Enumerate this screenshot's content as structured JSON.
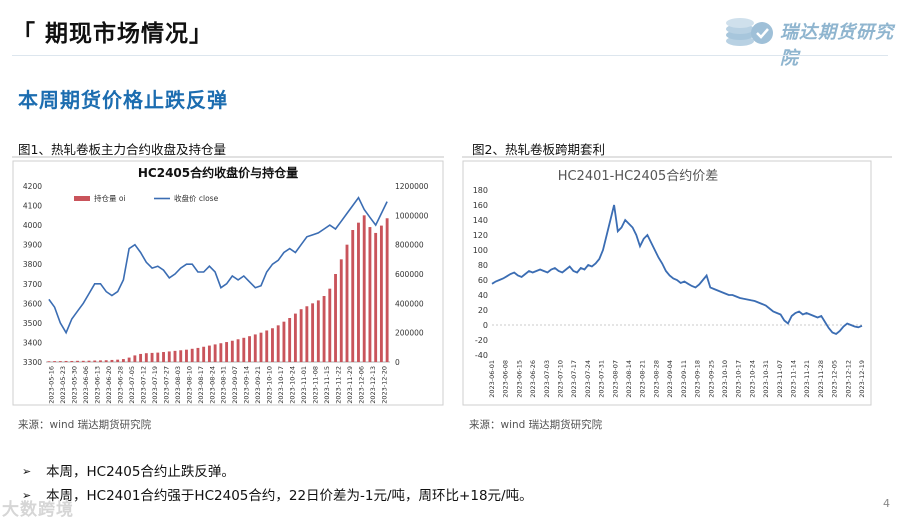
{
  "header": {
    "title": "「 期现市场情况」"
  },
  "logo": {
    "text": "瑞达期货研究院",
    "icon": "coins-stack-icon"
  },
  "section": {
    "title": "本周期货价格止跌反弹"
  },
  "figures": {
    "fig1_caption": "图1、热轧卷板主力合约收盘及持仓量",
    "fig2_caption": "图2、热轧卷板跨期套利"
  },
  "sources": {
    "left": "来源：wind   瑞达期货研究院",
    "right": "来源：wind   瑞达期货研究院"
  },
  "bullets": [
    "本周，HC2405合约止跌反弹。",
    "本周，HC2401合约强于HC2405合约，22日价差为-1元/吨，周环比+18元/吨。"
  ],
  "watermark": "大数跨境",
  "page_number": "4",
  "colors": {
    "accent": "#1c6db0",
    "bar": "#c9545b",
    "line": "#3b6db3",
    "logo": "#8fb5cf"
  },
  "chart_data": [
    {
      "type": "bar+line",
      "title": "HC2405合约收盘价与持仓量",
      "legend": {
        "bar": "持仓量 oi",
        "line": "收盘价 close",
        "placement": "top"
      },
      "y_left_ticks": [
        "3300",
        "3400",
        "3500",
        "3600",
        "3700",
        "3800",
        "3900",
        "4000",
        "4100",
        "4200"
      ],
      "y_right_ticks": [
        "0",
        "200000",
        "400000",
        "600000",
        "800000",
        "1000000",
        "1200000"
      ],
      "ylim_left": [
        3300,
        4200
      ],
      "ylim_right": [
        0,
        1200000
      ],
      "x_tick_labels": [
        "2023-05-16",
        "2023-05-23",
        "2023-05-30",
        "2023-06-06",
        "2023-06-13",
        "2023-06-20",
        "2023-06-28",
        "2023-07-05",
        "2023-07-12",
        "2023-07-19",
        "2023-07-27",
        "2023-08-03",
        "2023-08-10",
        "2023-08-17",
        "2023-08-24",
        "2023-08-31",
        "2023-09-07",
        "2023-09-14",
        "2023-09-21",
        "2023-10-10",
        "2023-10-17",
        "2023-10-24",
        "2023-11-01",
        "2023-11-08",
        "2023-11-15",
        "2023-11-22",
        "2023-11-29",
        "2023-12-06",
        "2023-12-13",
        "2023-12-20"
      ],
      "close": [
        3620,
        3580,
        3500,
        3450,
        3520,
        3560,
        3600,
        3650,
        3700,
        3700,
        3660,
        3640,
        3660,
        3720,
        3880,
        3900,
        3860,
        3810,
        3780,
        3790,
        3770,
        3730,
        3750,
        3780,
        3800,
        3800,
        3760,
        3760,
        3790,
        3760,
        3680,
        3700,
        3740,
        3720,
        3740,
        3710,
        3680,
        3690,
        3760,
        3800,
        3820,
        3860,
        3880,
        3860,
        3900,
        3940,
        3950,
        3960,
        3980,
        4000,
        3980,
        4020,
        4060,
        4100,
        4140,
        4080,
        4040,
        4000,
        4060,
        4120
      ],
      "oi": [
        5000,
        6000,
        6000,
        7000,
        7000,
        8000,
        8000,
        9000,
        10000,
        11000,
        12000,
        14000,
        16000,
        20000,
        30000,
        45000,
        55000,
        60000,
        62000,
        64000,
        68000,
        72000,
        76000,
        80000,
        84000,
        90000,
        96000,
        104000,
        112000,
        120000,
        128000,
        136000,
        145000,
        155000,
        165000,
        176000,
        188000,
        200000,
        215000,
        230000,
        250000,
        275000,
        300000,
        330000,
        360000,
        380000,
        400000,
        420000,
        450000,
        500000,
        600000,
        700000,
        800000,
        900000,
        950000,
        1000000,
        920000,
        880000,
        930000,
        980000
      ]
    },
    {
      "type": "line",
      "title": "HC2401-HC2405合约价差",
      "y_ticks": [
        "-40",
        "-20",
        "0",
        "20",
        "40",
        "60",
        "80",
        "100",
        "120",
        "140",
        "160",
        "180"
      ],
      "ylim": [
        -40,
        180
      ],
      "x_tick_labels": [
        "2023-06-01",
        "2023-06-08",
        "2023-06-15",
        "2023-06-26",
        "2023-07-03",
        "2023-07-10",
        "2023-07-17",
        "2023-07-24",
        "2023-07-31",
        "2023-08-07",
        "2023-08-14",
        "2023-08-21",
        "2023-08-28",
        "2023-09-04",
        "2023-09-11",
        "2023-09-18",
        "2023-09-25",
        "2023-10-10",
        "2023-10-17",
        "2023-10-24",
        "2023-10-31",
        "2023-11-07",
        "2023-11-14",
        "2023-11-21",
        "2023-11-28",
        "2023-12-05",
        "2023-12-12",
        "2023-12-19"
      ],
      "values": [
        55,
        58,
        60,
        62,
        65,
        68,
        70,
        66,
        64,
        68,
        72,
        70,
        72,
        74,
        72,
        70,
        74,
        76,
        72,
        70,
        74,
        78,
        72,
        70,
        76,
        74,
        80,
        78,
        82,
        88,
        100,
        120,
        140,
        160,
        125,
        130,
        140,
        135,
        130,
        120,
        105,
        115,
        120,
        110,
        100,
        90,
        82,
        72,
        66,
        62,
        60,
        56,
        58,
        55,
        52,
        50,
        54,
        60,
        66,
        50,
        48,
        46,
        44,
        42,
        40,
        40,
        38,
        36,
        35,
        34,
        33,
        32,
        30,
        28,
        26,
        22,
        18,
        16,
        14,
        6,
        2,
        12,
        16,
        18,
        14,
        16,
        14,
        12,
        10,
        12,
        4,
        -4,
        -10,
        -12,
        -8,
        -2,
        2,
        0,
        -2,
        -3,
        -1
      ]
    }
  ]
}
